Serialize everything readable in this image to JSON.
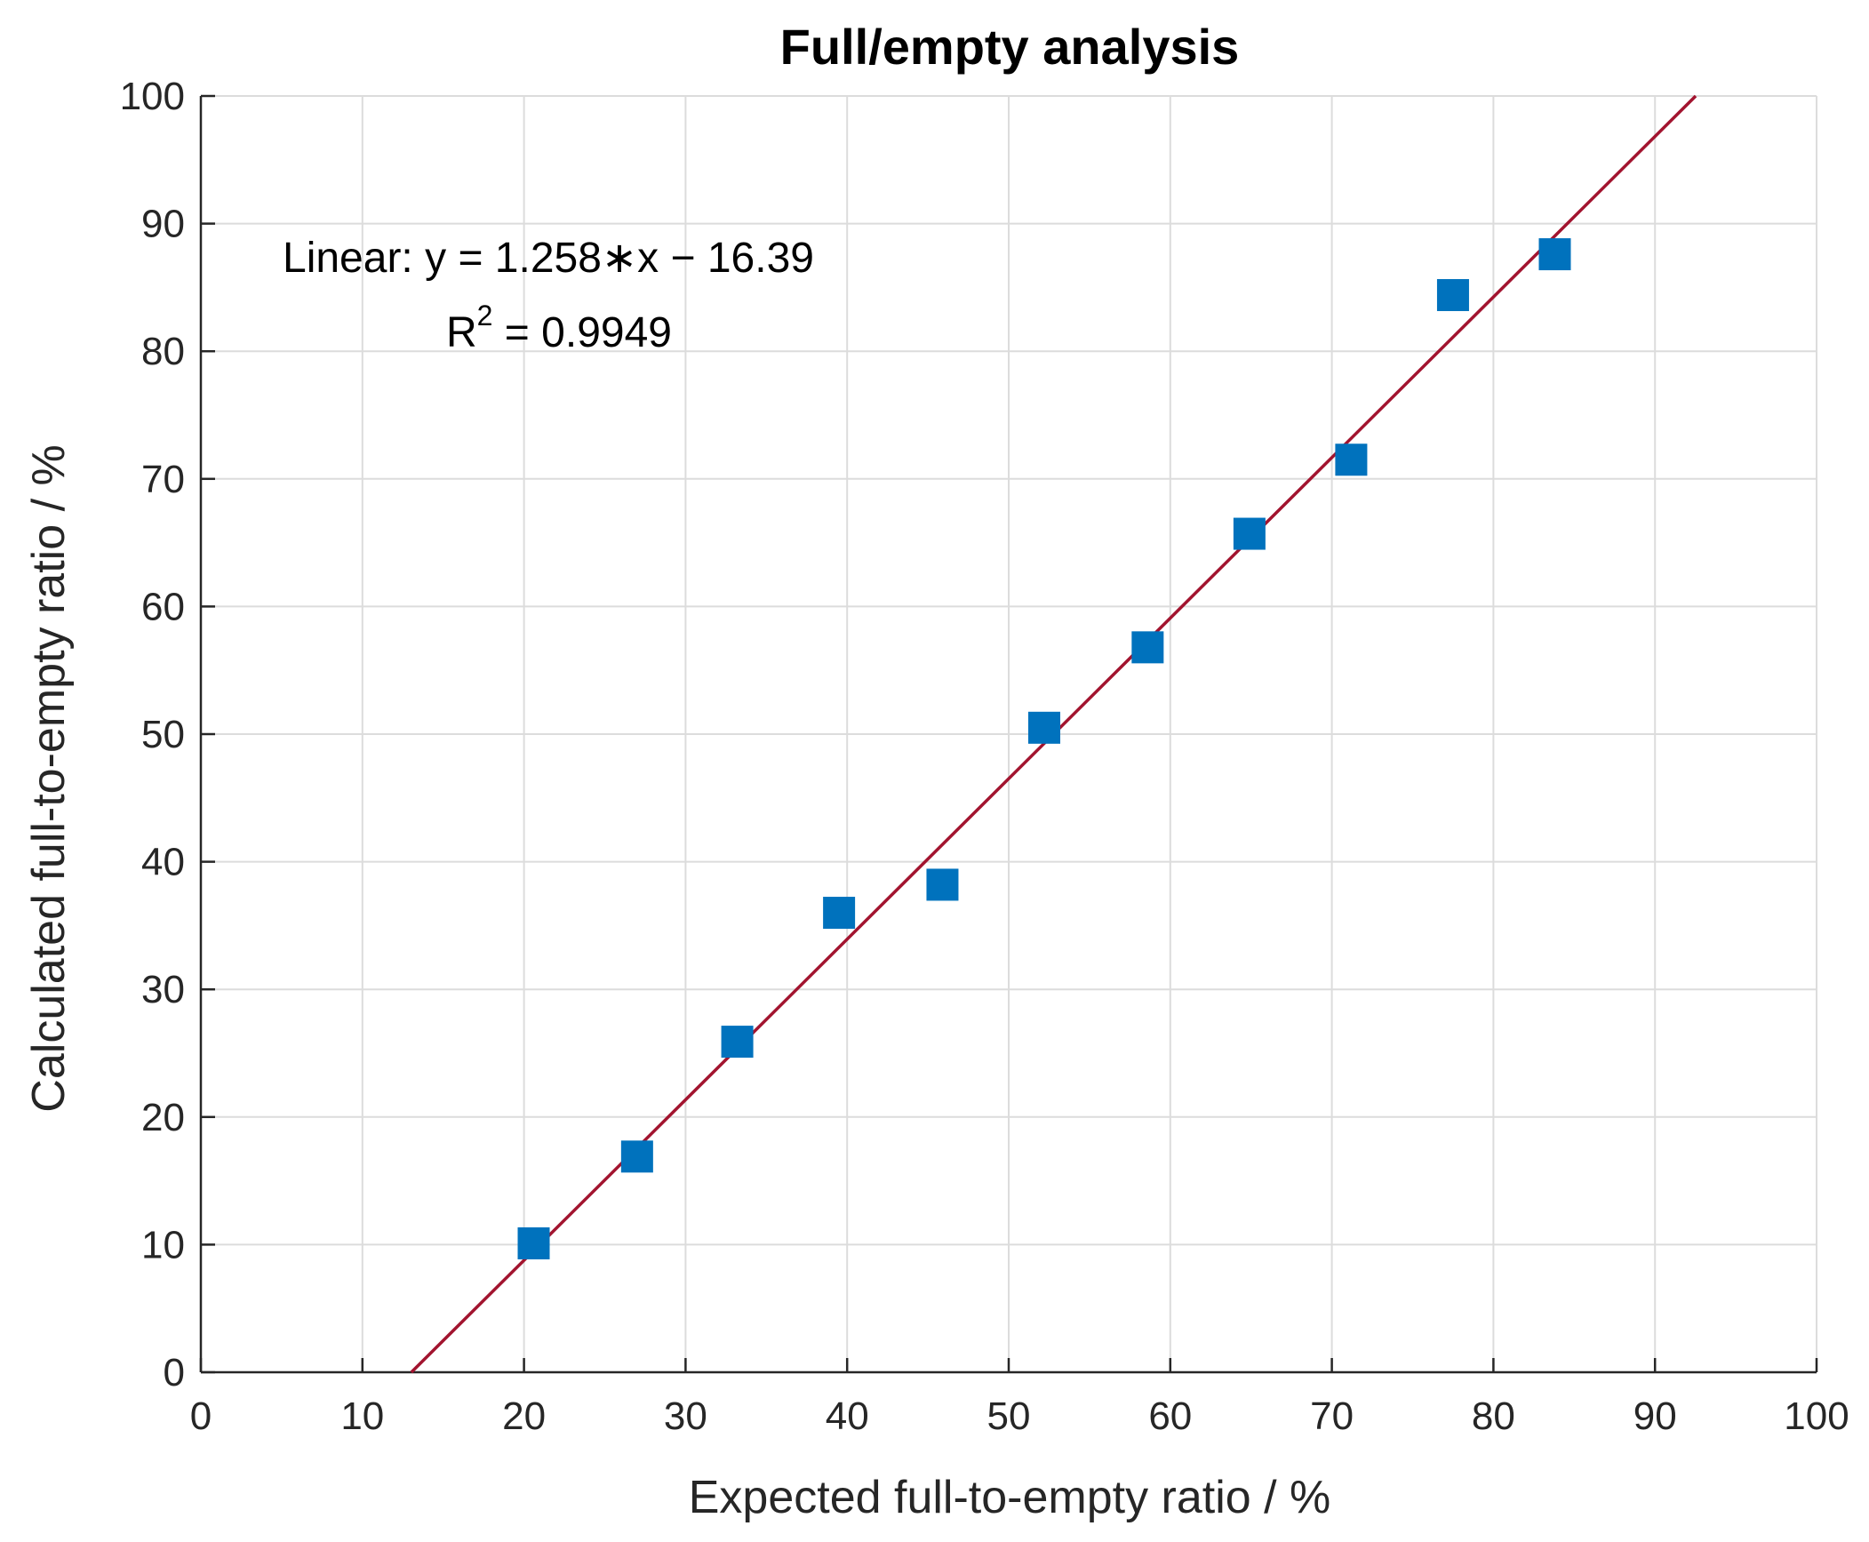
{
  "chart_data": {
    "type": "scatter",
    "title": "Full/empty analysis",
    "xlabel": "Expected full-to-empty ratio / %",
    "ylabel": "Calculated full-to-empty ratio / %",
    "xlim": [
      0,
      100
    ],
    "ylim": [
      0,
      100
    ],
    "xticks": [
      0,
      10,
      20,
      30,
      40,
      50,
      60,
      70,
      80,
      90,
      100
    ],
    "yticks": [
      0,
      10,
      20,
      30,
      40,
      50,
      60,
      70,
      80,
      90,
      100
    ],
    "grid": true,
    "series": [
      {
        "marker": "square",
        "color": "#0072BD",
        "x": [
          20.6,
          27.0,
          33.2,
          39.5,
          45.9,
          52.2,
          58.6,
          64.9,
          71.2,
          77.5,
          83.8
        ],
        "y": [
          10.1,
          16.9,
          25.9,
          36.0,
          38.2,
          50.5,
          56.8,
          65.7,
          71.5,
          84.4,
          87.6
        ]
      }
    ],
    "fit": {
      "type": "linear",
      "slope": 1.258,
      "intercept": -16.39,
      "r2": 0.9949,
      "color": "#A2142F"
    },
    "annotations": {
      "equation": "Linear:  y = 1.258∗x − 16.39",
      "r2_label": "R",
      "r2_exponent": "2",
      "r2_value": " = 0.9949"
    }
  }
}
